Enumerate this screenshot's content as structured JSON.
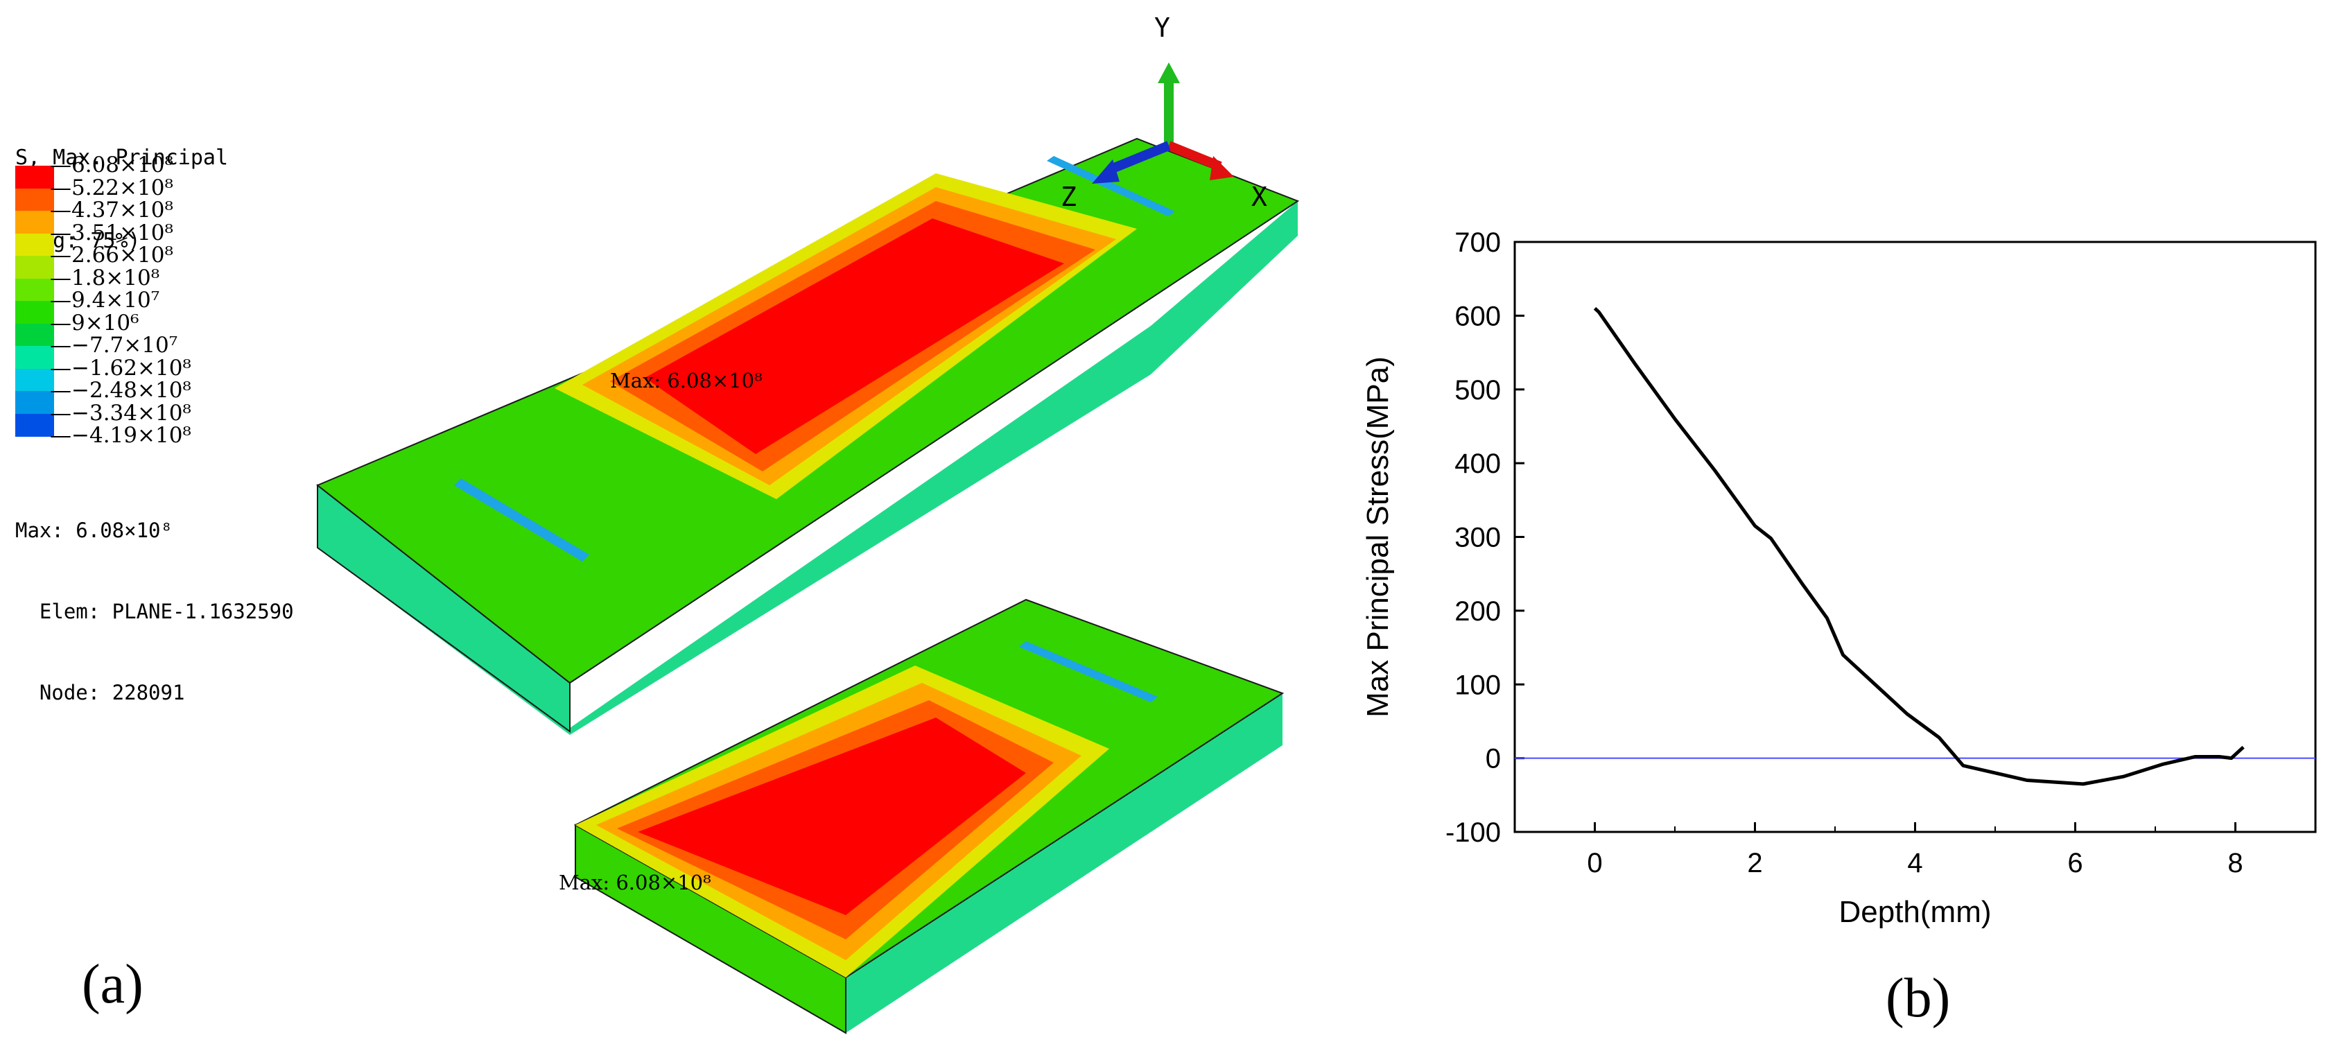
{
  "legend": {
    "title_line1": "S, Max. Principal",
    "title_line2": "(Avg: 75%)",
    "levels": [
      {
        "label": "6.08×10⁸",
        "color": "#ff0000"
      },
      {
        "label": "5.22×10⁸",
        "color": "#ff5a00"
      },
      {
        "label": "4.37×10⁸",
        "color": "#ffa500"
      },
      {
        "label": "3.51×10⁸",
        "color": "#e0e600"
      },
      {
        "label": "2.66×10⁸",
        "color": "#a6e600"
      },
      {
        "label": "1.8×10⁸",
        "color": "#64e600"
      },
      {
        "label": "9.4×10⁷",
        "color": "#24dc00"
      },
      {
        "label": "9×10⁶",
        "color": "#00d23c"
      },
      {
        "label": "−7.7×10⁷",
        "color": "#00e6a0"
      },
      {
        "label": "−1.62×10⁸",
        "color": "#00c8e6"
      },
      {
        "label": "−2.48×10⁸",
        "color": "#0096e6"
      },
      {
        "label": "−3.34×10⁸",
        "color": "#0050e6"
      },
      {
        "label": "−4.19×10⁸",
        "color": "#0000e6"
      }
    ],
    "max_line": "Max: 6.08×10⁸",
    "elem_line": "  Elem: PLANE-1.1632590",
    "node_line": "  Node: 228091"
  },
  "triad": {
    "y": "Y",
    "x": "X",
    "z": "Z"
  },
  "model": {
    "max_tag_top": "Max: 6.08×10⁸",
    "max_tag_bottom": "Max: 6.08×10⁸",
    "colors": {
      "red": "#ff0000",
      "orange_red": "#ff5a00",
      "orange": "#ffa500",
      "yellow": "#e0e600",
      "green": "#33d400",
      "green_light": "#49de1a",
      "teal": "#1fd98a",
      "blue": "#1ea5e6"
    }
  },
  "panels": {
    "a": "(a)",
    "b": "(b)"
  },
  "chart_data": {
    "type": "line",
    "xlabel": "Depth(mm)",
    "ylabel": "Max Principal Stress(MPa)",
    "xlim": [
      -1,
      9
    ],
    "ylim": [
      -100,
      700
    ],
    "xticks": [
      0,
      2,
      4,
      6,
      8
    ],
    "yticks": [
      -100,
      0,
      100,
      200,
      300,
      400,
      500,
      600,
      700
    ],
    "series": [
      {
        "color": "#000000",
        "x": [
          0,
          0.05,
          0.5,
          1.0,
          1.5,
          2.0,
          2.2,
          2.6,
          2.9,
          3.1,
          3.5,
          3.9,
          4.3,
          4.6,
          5.0,
          5.4,
          6.1,
          6.6,
          7.1,
          7.5,
          7.8,
          7.95,
          8.1
        ],
        "y": [
          610,
          605,
          535,
          460,
          390,
          315,
          298,
          235,
          190,
          140,
          100,
          60,
          28,
          -10,
          -20,
          -30,
          -35,
          -25,
          -8,
          2,
          2,
          0,
          15
        ]
      }
    ],
    "reference_line": {
      "y": 0,
      "color": "#4a4aff"
    }
  }
}
